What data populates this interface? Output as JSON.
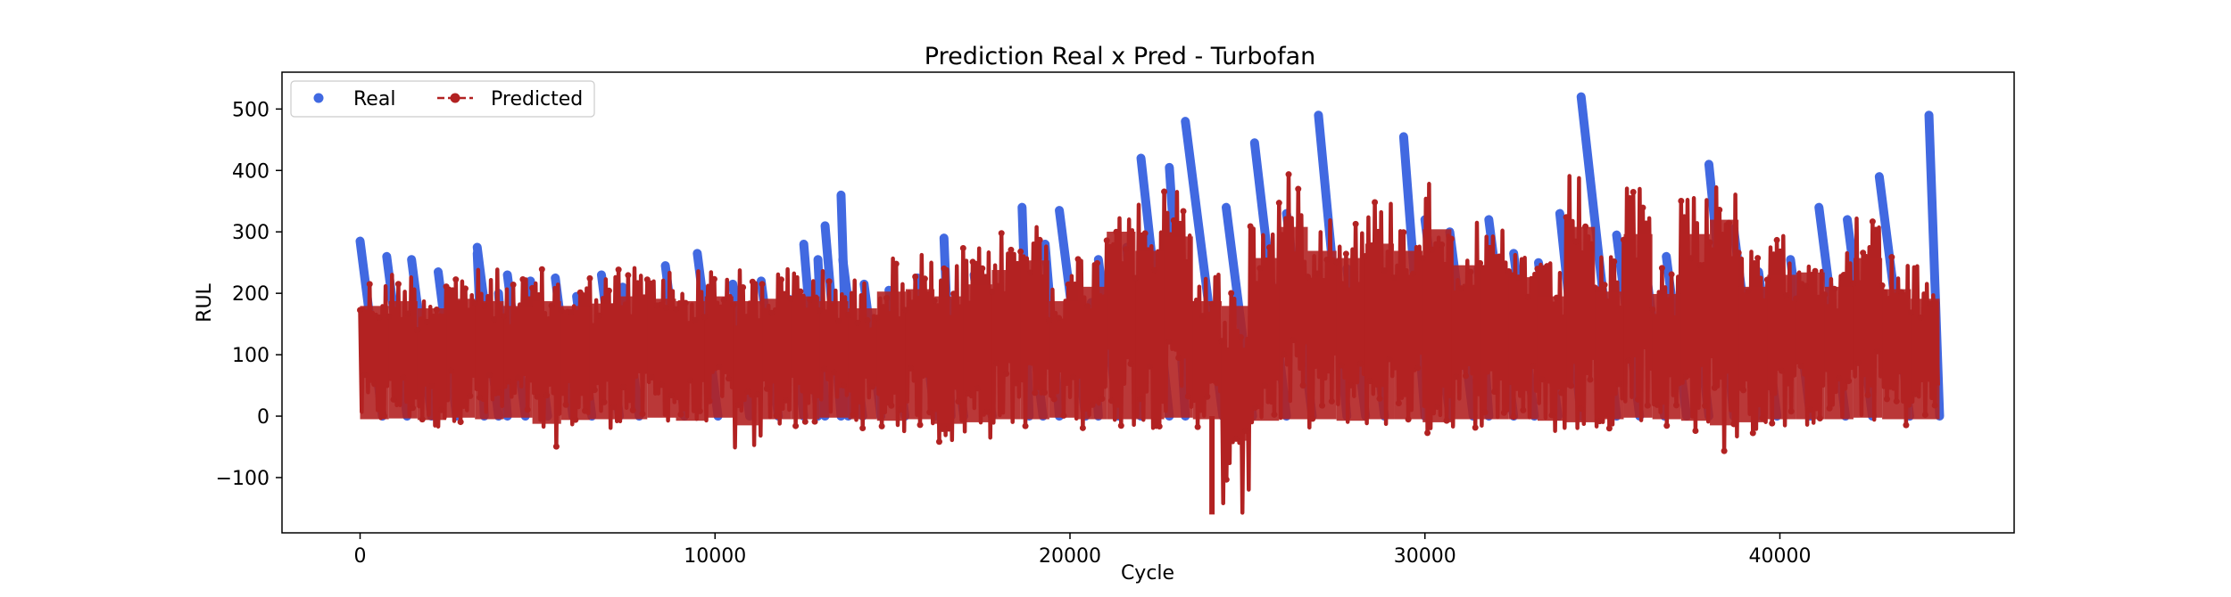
{
  "chart_data": {
    "type": "line",
    "title": "Prediction Real x Pred - Turbofan",
    "xlabel": "Cycle",
    "ylabel": "RUL",
    "xlim": [
      -2200,
      46600
    ],
    "ylim": [
      -190,
      560
    ],
    "x_ticks": [
      0,
      10000,
      20000,
      30000,
      40000
    ],
    "x_tick_labels": [
      "0",
      "10000",
      "20000",
      "30000",
      "40000"
    ],
    "y_ticks": [
      -100,
      0,
      100,
      200,
      300,
      400,
      500
    ],
    "y_tick_labels": [
      "−100",
      "0",
      "100",
      "200",
      "300",
      "400",
      "500"
    ],
    "grid": false,
    "legend_position": "top-left",
    "x_total": 44500,
    "series": [
      {
        "name": "Real",
        "style": "markers",
        "color": "#4169e1",
        "segment_peaks": [
          285,
          260,
          255,
          235,
          265,
          200,
          275,
          230,
          220,
          225,
          195,
          230,
          210,
          245,
          265,
          215,
          220,
          190,
          255,
          255,
          215,
          280,
          310,
          360,
          205,
          225,
          185,
          230,
          290,
          245,
          340,
          280,
          335,
          185,
          255,
          275,
          420,
          405,
          480,
          340,
          445,
          330,
          490,
          240,
          210,
          455,
          320,
          300,
          240,
          320,
          265,
          250,
          330,
          520,
          295,
          250,
          260,
          240,
          410,
          305,
          235,
          255,
          340,
          320,
          390,
          490
        ],
        "segment_peak_positions": [
          0,
          750,
          1450,
          2200,
          3300,
          3900,
          3300,
          4150,
          4800,
          5500,
          6100,
          6800,
          7400,
          8600,
          9500,
          10500,
          11300,
          12100,
          12900,
          13600,
          14200,
          12500,
          13100,
          13550,
          14900,
          15700,
          16600,
          17300,
          16450,
          18700,
          18650,
          19300,
          19700,
          20600,
          20800,
          21600,
          22000,
          22800,
          23250,
          24400,
          25200,
          26100,
          27000,
          27800,
          28400,
          29400,
          30000,
          30700,
          31500,
          31800,
          32500,
          33200,
          33800,
          34400,
          35400,
          36200,
          36800,
          37500,
          38000,
          38700,
          39400,
          40300,
          41100,
          41900,
          42800,
          44200
        ]
      },
      {
        "name": "Predicted",
        "style": "dashed-line-markers",
        "color": "#b22222",
        "band_low": [
          -20,
          -15,
          -25,
          -10,
          -20,
          -10,
          -50,
          -25,
          -20,
          -20,
          -10,
          -30,
          -10,
          -60,
          -20,
          -20,
          -10,
          -20,
          -30,
          -20,
          -50,
          -40,
          -20,
          -20,
          -10,
          -20,
          -20,
          -20,
          -10,
          -20,
          -160,
          -30,
          -20,
          -20,
          -30,
          -20,
          -20,
          -40,
          -20,
          -20,
          -20,
          -30,
          -40,
          -20,
          -10,
          -20,
          -30,
          -60,
          -40,
          -20,
          -20,
          -20,
          -10,
          -20,
          -20
        ],
        "band_high": [
          230,
          240,
          225,
          245,
          240,
          230,
          240,
          230,
          235,
          250,
          245,
          240,
          250,
          240,
          245,
          250,
          240,
          225,
          260,
          265,
          250,
          275,
          305,
          325,
          240,
          270,
          385,
          345,
          375,
          240,
          230,
          330,
          395,
          345,
          330,
          360,
          345,
          390,
          315,
          305,
          290,
          250,
          395,
          260,
          380,
          255,
          380,
          410,
          270,
          295,
          300,
          270,
          330,
          265,
          245
        ],
        "summary_peak_cycle": 24000,
        "min_value": -160,
        "max_value": 410
      }
    ]
  }
}
